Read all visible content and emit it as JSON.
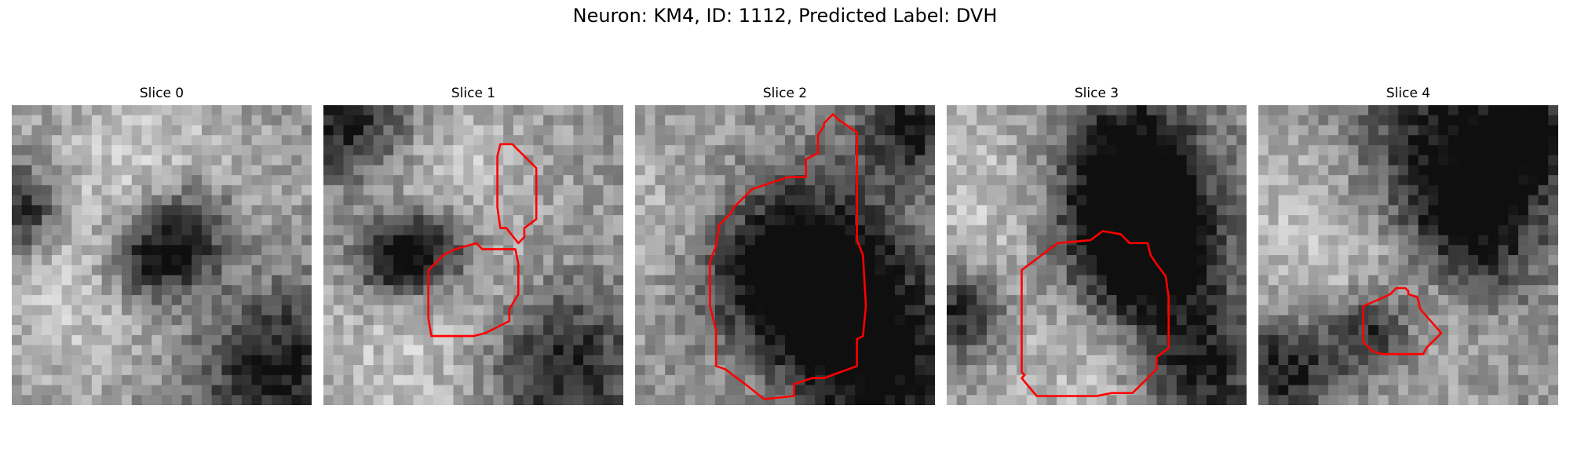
{
  "figure": {
    "title": "Neuron: KM4, ID: 1112, Predicted Label: DVH",
    "outline_color": "#ff0000"
  },
  "panels": [
    {
      "title": "Slice 0",
      "seed": 11,
      "bright_spots": [
        [
          0.45,
          0.18,
          0.22
        ],
        [
          0.25,
          0.62,
          0.25
        ],
        [
          0.7,
          0.5,
          0.2
        ]
      ],
      "dark_spots": [
        [
          0.47,
          0.52,
          0.11
        ],
        [
          0.9,
          0.87,
          0.22
        ],
        [
          0.03,
          0.35,
          0.1
        ],
        [
          0.6,
          0.42,
          0.13
        ]
      ],
      "outline": []
    },
    {
      "title": "Slice 1",
      "seed": 23,
      "bright_spots": [
        [
          0.3,
          0.8,
          0.3
        ],
        [
          0.4,
          0.25,
          0.2
        ]
      ],
      "dark_spots": [
        [
          0.37,
          0.47,
          0.1
        ],
        [
          0.8,
          0.88,
          0.18
        ],
        [
          0.08,
          0.05,
          0.15
        ],
        [
          0.22,
          0.52,
          0.1
        ]
      ],
      "outline": [
        [
          [
            0.59,
            0.13
          ],
          [
            0.63,
            0.13
          ],
          [
            0.71,
            0.21
          ],
          [
            0.71,
            0.38
          ],
          [
            0.67,
            0.41
          ],
          [
            0.67,
            0.44
          ],
          [
            0.65,
            0.46
          ],
          [
            0.61,
            0.41
          ],
          [
            0.59,
            0.41
          ],
          [
            0.58,
            0.34
          ],
          [
            0.58,
            0.17
          ]
        ],
        [
          [
            0.51,
            0.46
          ],
          [
            0.53,
            0.48
          ],
          [
            0.56,
            0.48
          ],
          [
            0.64,
            0.48
          ],
          [
            0.65,
            0.53
          ],
          [
            0.65,
            0.63
          ],
          [
            0.62,
            0.68
          ],
          [
            0.62,
            0.72
          ],
          [
            0.54,
            0.76
          ],
          [
            0.5,
            0.77
          ],
          [
            0.49,
            0.77
          ],
          [
            0.36,
            0.77
          ],
          [
            0.35,
            0.71
          ],
          [
            0.35,
            0.55
          ],
          [
            0.4,
            0.5
          ],
          [
            0.44,
            0.48
          ]
        ]
      ]
    },
    {
      "title": "Slice 2",
      "seed": 37,
      "bright_spots": [
        [
          0.15,
          0.4,
          0.25
        ],
        [
          0.4,
          0.85,
          0.15
        ]
      ],
      "dark_spots": [
        [
          0.6,
          0.62,
          0.19
        ],
        [
          0.5,
          0.55,
          0.24
        ],
        [
          0.85,
          0.9,
          0.22
        ],
        [
          0.92,
          0.07,
          0.12
        ]
      ],
      "outline": [
        [
          [
            0.66,
            0.03
          ],
          [
            0.68,
            0.05
          ],
          [
            0.74,
            0.09
          ],
          [
            0.74,
            0.45
          ],
          [
            0.76,
            0.5
          ],
          [
            0.77,
            0.67
          ],
          [
            0.76,
            0.77
          ],
          [
            0.74,
            0.78
          ],
          [
            0.74,
            0.87
          ],
          [
            0.63,
            0.91
          ],
          [
            0.59,
            0.91
          ],
          [
            0.53,
            0.93
          ],
          [
            0.53,
            0.97
          ],
          [
            0.43,
            0.98
          ],
          [
            0.38,
            0.94
          ],
          [
            0.3,
            0.88
          ],
          [
            0.27,
            0.87
          ],
          [
            0.27,
            0.75
          ],
          [
            0.25,
            0.67
          ],
          [
            0.25,
            0.52
          ],
          [
            0.27,
            0.47
          ],
          [
            0.28,
            0.4
          ],
          [
            0.32,
            0.36
          ],
          [
            0.33,
            0.34
          ],
          [
            0.39,
            0.28
          ],
          [
            0.45,
            0.26
          ],
          [
            0.51,
            0.24
          ],
          [
            0.57,
            0.24
          ],
          [
            0.57,
            0.18
          ],
          [
            0.61,
            0.16
          ],
          [
            0.61,
            0.1
          ],
          [
            0.63,
            0.07
          ],
          [
            0.63,
            0.06
          ]
        ]
      ]
    },
    {
      "title": "Slice 3",
      "seed": 41,
      "bright_spots": [
        [
          0.15,
          0.3,
          0.25
        ],
        [
          0.5,
          0.85,
          0.22
        ]
      ],
      "dark_spots": [
        [
          0.62,
          0.42,
          0.18
        ],
        [
          0.68,
          0.52,
          0.17
        ],
        [
          0.6,
          0.15,
          0.18
        ],
        [
          0.05,
          0.7,
          0.1
        ],
        [
          0.85,
          0.88,
          0.15
        ]
      ],
      "outline": [
        [
          [
            0.37,
            0.46
          ],
          [
            0.48,
            0.45
          ],
          [
            0.52,
            0.42
          ],
          [
            0.58,
            0.43
          ],
          [
            0.61,
            0.46
          ],
          [
            0.67,
            0.46
          ],
          [
            0.68,
            0.5
          ],
          [
            0.7,
            0.53
          ],
          [
            0.73,
            0.57
          ],
          [
            0.74,
            0.64
          ],
          [
            0.74,
            0.81
          ],
          [
            0.7,
            0.84
          ],
          [
            0.7,
            0.88
          ],
          [
            0.62,
            0.96
          ],
          [
            0.55,
            0.96
          ],
          [
            0.5,
            0.97
          ],
          [
            0.3,
            0.97
          ],
          [
            0.25,
            0.91
          ],
          [
            0.26,
            0.9
          ],
          [
            0.25,
            0.89
          ],
          [
            0.25,
            0.55
          ]
        ]
      ]
    },
    {
      "title": "Slice 4",
      "seed": 53,
      "bright_spots": [
        [
          0.2,
          0.35,
          0.25
        ],
        [
          0.5,
          0.6,
          0.2
        ]
      ],
      "dark_spots": [
        [
          0.72,
          0.42,
          0.16
        ],
        [
          0.6,
          0.15,
          0.22
        ],
        [
          0.9,
          0.1,
          0.12
        ],
        [
          0.1,
          0.88,
          0.12
        ],
        [
          0.38,
          0.75,
          0.1
        ]
      ],
      "outline": [
        [
          [
            0.42,
            0.64
          ],
          [
            0.44,
            0.63
          ],
          [
            0.46,
            0.61
          ],
          [
            0.49,
            0.61
          ],
          [
            0.5,
            0.62
          ],
          [
            0.5,
            0.63
          ],
          [
            0.53,
            0.64
          ],
          [
            0.54,
            0.68
          ],
          [
            0.61,
            0.76
          ],
          [
            0.56,
            0.81
          ],
          [
            0.55,
            0.83
          ],
          [
            0.41,
            0.83
          ],
          [
            0.38,
            0.82
          ],
          [
            0.36,
            0.8
          ],
          [
            0.35,
            0.79
          ],
          [
            0.35,
            0.67
          ]
        ]
      ]
    }
  ]
}
